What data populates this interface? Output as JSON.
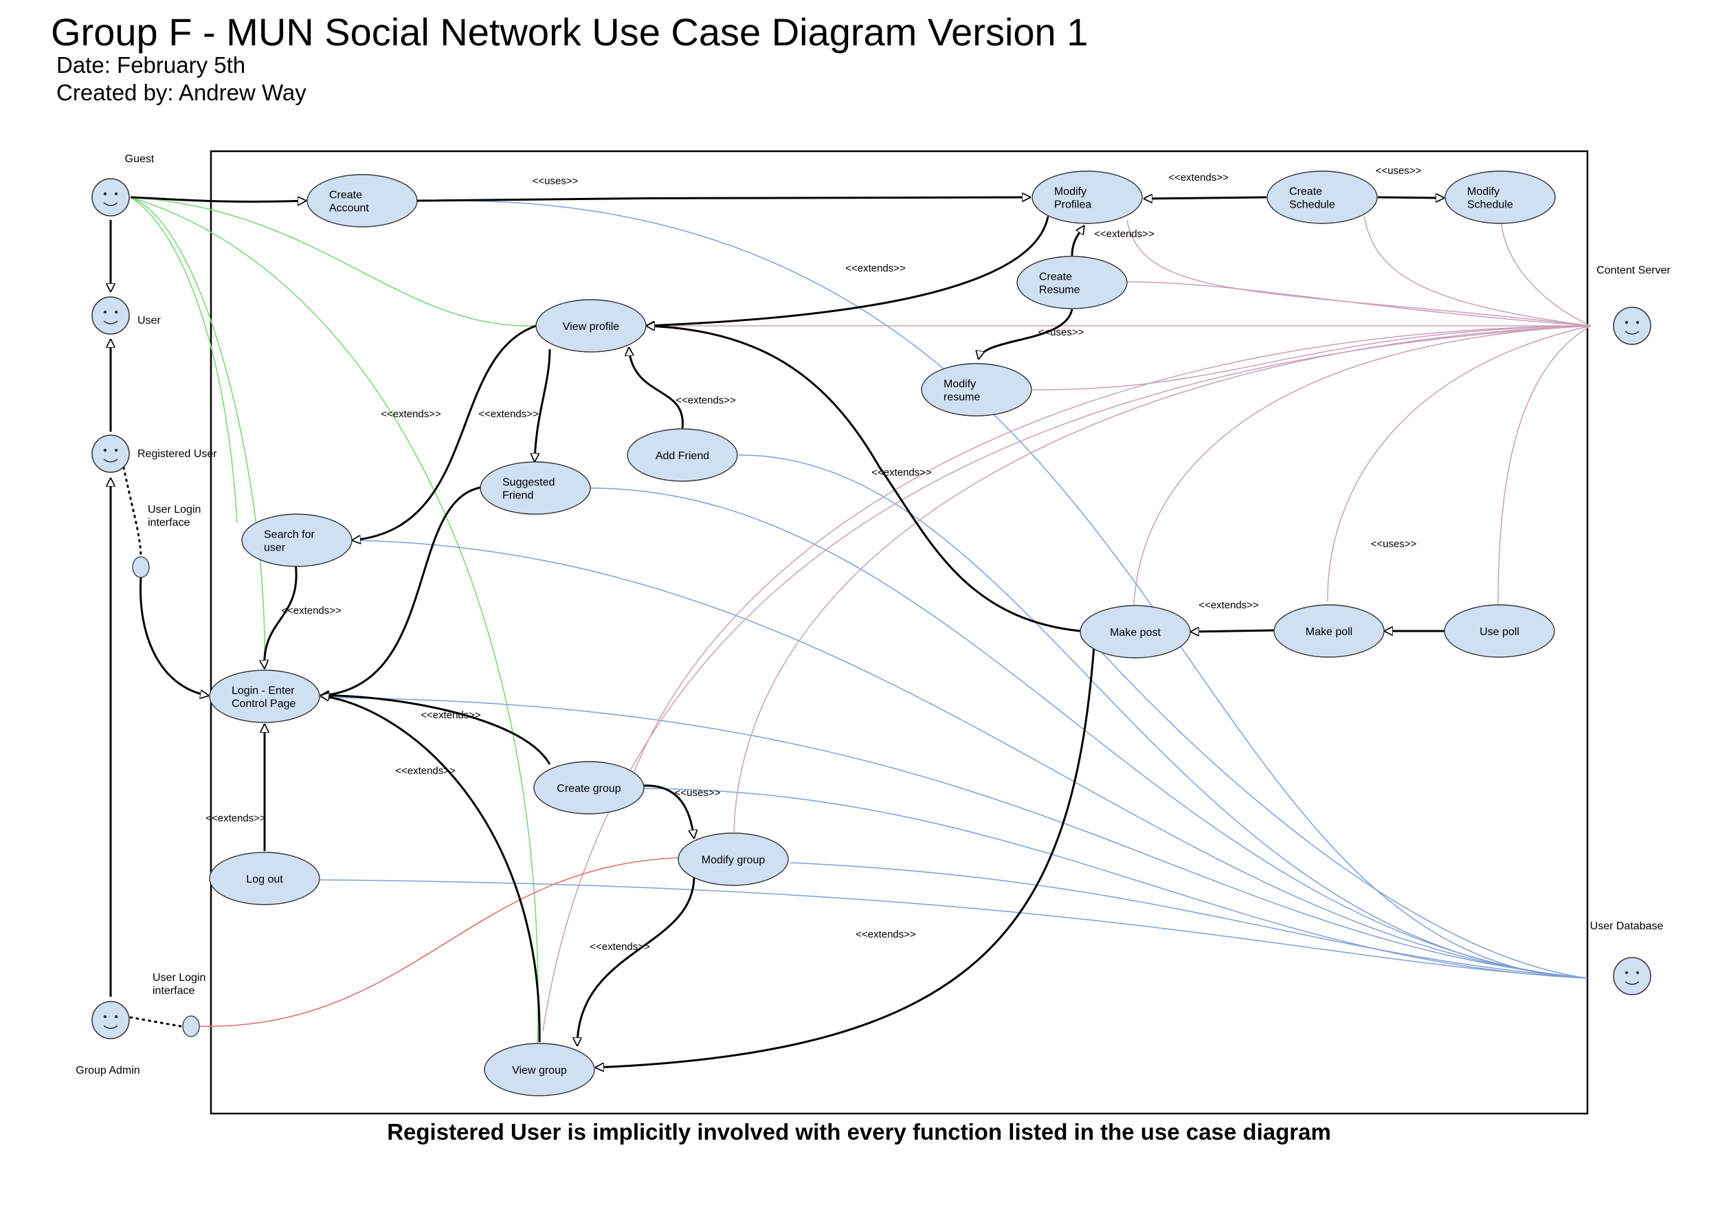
{
  "header": {
    "title": "Group F - MUN Social Network Use Case Diagram Version 1",
    "date": "Date: February 5th",
    "author": "Created by: Andrew Way"
  },
  "footer": "Registered User is implicitly involved with every function listed in the use case diagram",
  "colors": {
    "usecase_fill": "#cfe0f3",
    "blue": "#7e9fd6",
    "pink": "#c9a0b6",
    "green": "#7ed77e",
    "red": "#e07070"
  },
  "actors": [
    {
      "id": "guest",
      "label": "Guest"
    },
    {
      "id": "user",
      "label": "User"
    },
    {
      "id": "registered",
      "label": "Registered User"
    },
    {
      "id": "admin",
      "label": "Group Admin"
    },
    {
      "id": "content",
      "label": "Content Server"
    },
    {
      "id": "db",
      "label": "User Database"
    }
  ],
  "interfaces": [
    {
      "id": "rif",
      "lines": [
        "User Login",
        "interface"
      ]
    },
    {
      "id": "aif",
      "lines": [
        "User Login",
        "interface"
      ]
    }
  ],
  "usecases": [
    {
      "id": "create_account",
      "lines": [
        "Create",
        "Account"
      ]
    },
    {
      "id": "modify_profile",
      "lines": [
        "Modify",
        "Profilea"
      ]
    },
    {
      "id": "create_schedule",
      "lines": [
        "Create",
        "Schedule"
      ]
    },
    {
      "id": "modify_schedule",
      "lines": [
        "Modify",
        "Schedule"
      ]
    },
    {
      "id": "create_resume",
      "lines": [
        "Create",
        "Resume"
      ]
    },
    {
      "id": "modify_resume",
      "lines": [
        "Modify",
        "resume"
      ]
    },
    {
      "id": "view_profile",
      "lines": [
        "View profile"
      ]
    },
    {
      "id": "add_friend",
      "lines": [
        "Add Friend"
      ]
    },
    {
      "id": "suggested_friend",
      "lines": [
        "Suggested",
        "Friend"
      ]
    },
    {
      "id": "search_user",
      "lines": [
        "Search for",
        "user"
      ]
    },
    {
      "id": "login",
      "lines": [
        "Login - Enter",
        "Control Page"
      ]
    },
    {
      "id": "log_out",
      "lines": [
        "Log out"
      ]
    },
    {
      "id": "create_group",
      "lines": [
        "Create group"
      ]
    },
    {
      "id": "modify_group",
      "lines": [
        "Modify group"
      ]
    },
    {
      "id": "view_group",
      "lines": [
        "View group"
      ]
    },
    {
      "id": "make_post",
      "lines": [
        "Make post"
      ]
    },
    {
      "id": "make_poll",
      "lines": [
        "Make poll"
      ]
    },
    {
      "id": "use_poll",
      "lines": [
        "Use poll"
      ]
    }
  ],
  "edges": [
    {
      "id": "uses-createaccount-modifyprofile",
      "label": "<<uses>>"
    },
    {
      "id": "ext-createschedule-modifyprofile",
      "label": "<<extends>>"
    },
    {
      "id": "uses-createschedule-modifyschedule",
      "label": "<<uses>>"
    },
    {
      "id": "ext-createresume-modifyprofile",
      "label": "<<extends>>"
    },
    {
      "id": "ext-modifyprofile-viewprofile",
      "label": "<<extends>>"
    },
    {
      "id": "uses-createresume-modifyresume",
      "label": "<<uses>>"
    },
    {
      "id": "ext-viewprofile-searchuser",
      "label": "<<extends>>"
    },
    {
      "id": "ext-viewprofile-suggestedfriend",
      "label": "<<extends>>"
    },
    {
      "id": "ext-addfriend-viewprofile",
      "label": "<<extends>>"
    },
    {
      "id": "ext-makepost-viewprofile",
      "label": "<<extends>>"
    },
    {
      "id": "uses-contentserver",
      "label": "<<uses>>"
    },
    {
      "id": "ext-makepoll-makepost",
      "label": "<<extends>>"
    },
    {
      "id": "ext-searchuser-login",
      "label": "<<extends>>"
    },
    {
      "id": "ext-creategroup-login",
      "label": "<<extends>>"
    },
    {
      "id": "ext-viewgroup-login",
      "label": "<<extends>>"
    },
    {
      "id": "uses-creategroup-modifygroup",
      "label": "<<uses>>"
    },
    {
      "id": "ext-logout-login",
      "label": "<<extends>>"
    },
    {
      "id": "ext-modifygroup-viewgroup",
      "label": "<<extends>>"
    },
    {
      "id": "ext-makepost-viewgroup",
      "label": "<<extends>>"
    }
  ]
}
